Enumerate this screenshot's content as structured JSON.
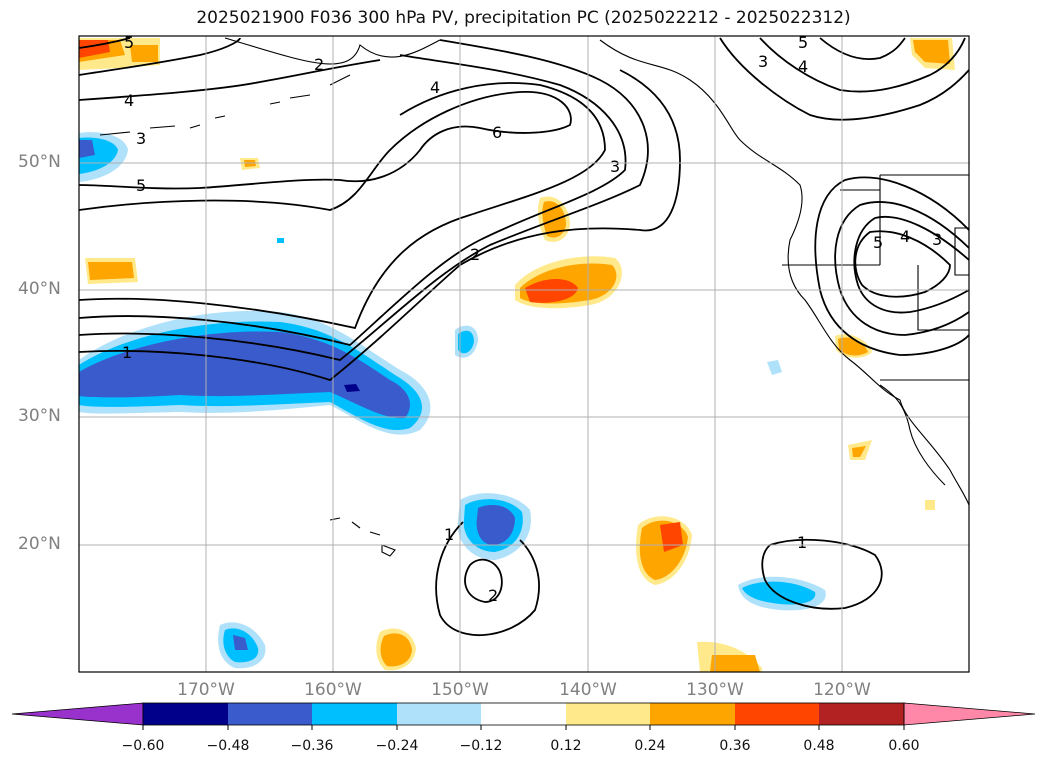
{
  "title": "2025021900 F036 300 hPa PV, precipitation PC (2025022212 - 2025022312)",
  "lat_labels": [
    "50°N",
    "40°N",
    "30°N",
    "20°N"
  ],
  "lon_labels": [
    "170°W",
    "160°W",
    "150°W",
    "140°W",
    "130°W",
    "120°W"
  ],
  "contour_labels": [
    "5",
    "2",
    "4",
    "3",
    "5",
    "4",
    "4",
    "3",
    "6",
    "3",
    "2",
    "1",
    "1",
    "2",
    "1",
    "5",
    "4",
    "3",
    "5"
  ],
  "colorbar": {
    "ticks": [
      "−0.60",
      "−0.48",
      "−0.36",
      "−0.24",
      "−0.12",
      "0.12",
      "0.24",
      "0.36",
      "0.48",
      "0.60"
    ],
    "colors": [
      "#9932cc",
      "#00008b",
      "#3a5bcc",
      "#00bfff",
      "#afe1fa",
      "#ffffff",
      "#ffe98a",
      "#ffa500",
      "#ff4500",
      "#b22222",
      "#ff88a8"
    ]
  },
  "colors": {
    "neg_strong": "#00008b",
    "neg_med": "#3a5bcc",
    "neg": "#00bfff",
    "neg_light": "#afe1fa",
    "pos_light": "#ffe98a",
    "pos": "#ffa500",
    "pos_med": "#ff4500",
    "grid": "#b0b0b0",
    "contour": "#000000"
  }
}
